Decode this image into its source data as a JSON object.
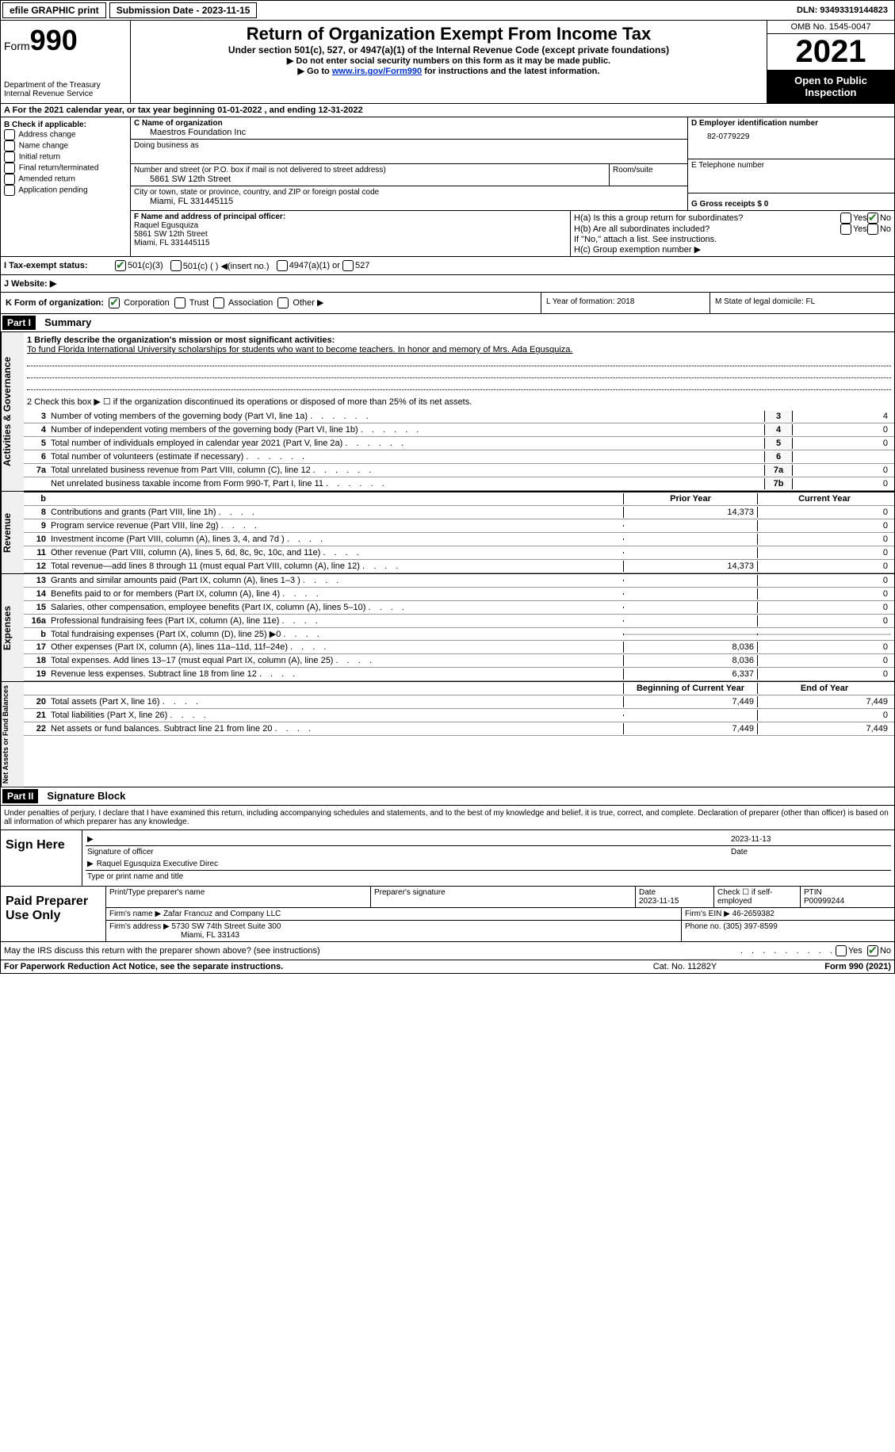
{
  "topbar": {
    "efile": "efile GRAPHIC print",
    "submission_label": "Submission Date - 2023-11-15",
    "dln": "DLN: 93493319144823"
  },
  "header": {
    "form_prefix": "Form",
    "form_num": "990",
    "dept": "Department of the Treasury",
    "irs": "Internal Revenue Service",
    "title": "Return of Organization Exempt From Income Tax",
    "sub": "Under section 501(c), 527, or 4947(a)(1) of the Internal Revenue Code (except private foundations)",
    "note1": "▶ Do not enter social security numbers on this form as it may be made public.",
    "note2_pre": "▶ Go to ",
    "note2_link": "www.irs.gov/Form990",
    "note2_post": " for instructions and the latest information.",
    "omb": "OMB No. 1545-0047",
    "year": "2021",
    "open": "Open to Public Inspection"
  },
  "row_a": "A  For the 2021 calendar year, or tax year beginning 01-01-2022    , and ending 12-31-2022",
  "col_b": {
    "label": "B Check if applicable:",
    "opts": [
      "Address change",
      "Name change",
      "Initial return",
      "Final return/terminated",
      "Amended return",
      "Application pending"
    ]
  },
  "col_c": {
    "name_label": "C Name of organization",
    "name": "Maestros Foundation Inc",
    "dba_label": "Doing business as",
    "addr_label": "Number and street (or P.O. box if mail is not delivered to street address)",
    "room_label": "Room/suite",
    "addr": "5861 SW 12th Street",
    "city_label": "City or town, state or province, country, and ZIP or foreign postal code",
    "city": "Miami, FL  331445115"
  },
  "col_de": {
    "d_label": "D Employer identification number",
    "d_val": "82-0779229",
    "e_label": "E Telephone number",
    "g_label": "G Gross receipts $ 0"
  },
  "col_f": {
    "label": "F  Name and address of principal officer:",
    "name": "Raquel Egusquiza",
    "addr1": "5861 SW 12th Street",
    "addr2": "Miami, FL  331445115"
  },
  "col_h": {
    "ha": "H(a)  Is this a group return for subordinates?",
    "hb": "H(b)  Are all subordinates included?",
    "hb_note": "If \"No,\" attach a list. See instructions.",
    "hc": "H(c)  Group exemption number ▶"
  },
  "row_i": {
    "label": "I   Tax-exempt status:",
    "opt1": "501(c)(3)",
    "opt2": "501(c) (  ) ◀(insert no.)",
    "opt3": "4947(a)(1) or",
    "opt4": "527"
  },
  "row_j": "J   Website: ▶",
  "row_k": {
    "label": "K Form of organization:",
    "opts": [
      "Corporation",
      "Trust",
      "Association",
      "Other ▶"
    ]
  },
  "row_l": "L Year of formation: 2018",
  "row_m": "M State of legal domicile: FL",
  "part1": {
    "header": "Part I",
    "title": "Summary",
    "vtab1": "Activities & Governance",
    "vtab2": "Revenue",
    "vtab3": "Expenses",
    "vtab4": "Net Assets or Fund Balances",
    "line1_label": "1   Briefly describe the organization's mission or most significant activities:",
    "mission": "To fund Florida International University scholarships for students who want to become teachers. In honor and memory of Mrs. Ada Egusquiza.",
    "line2": "2    Check this box ▶ ☐  if the organization discontinued its operations or disposed of more than 25% of its net assets.",
    "lines_gov": [
      {
        "n": "3",
        "t": "Number of voting members of the governing body (Part VI, line 1a)",
        "box": "3",
        "v": "4"
      },
      {
        "n": "4",
        "t": "Number of independent voting members of the governing body (Part VI, line 1b)",
        "box": "4",
        "v": "0"
      },
      {
        "n": "5",
        "t": "Total number of individuals employed in calendar year 2021 (Part V, line 2a)",
        "box": "5",
        "v": "0"
      },
      {
        "n": "6",
        "t": "Total number of volunteers (estimate if necessary)",
        "box": "6",
        "v": ""
      },
      {
        "n": "7a",
        "t": "Total unrelated business revenue from Part VIII, column (C), line 12",
        "box": "7a",
        "v": "0"
      },
      {
        "n": "",
        "t": "Net unrelated business taxable income from Form 990-T, Part I, line 11",
        "box": "7b",
        "v": "0"
      }
    ],
    "prior_header": "Prior Year",
    "curr_header": "Current Year",
    "lines_rev": [
      {
        "n": "8",
        "t": "Contributions and grants (Part VIII, line 1h)",
        "p": "14,373",
        "c": "0"
      },
      {
        "n": "9",
        "t": "Program service revenue (Part VIII, line 2g)",
        "p": "",
        "c": "0"
      },
      {
        "n": "10",
        "t": "Investment income (Part VIII, column (A), lines 3, 4, and 7d )",
        "p": "",
        "c": "0"
      },
      {
        "n": "11",
        "t": "Other revenue (Part VIII, column (A), lines 5, 6d, 8c, 9c, 10c, and 11e)",
        "p": "",
        "c": "0"
      },
      {
        "n": "12",
        "t": "Total revenue—add lines 8 through 11 (must equal Part VIII, column (A), line 12)",
        "p": "14,373",
        "c": "0"
      }
    ],
    "lines_exp": [
      {
        "n": "13",
        "t": "Grants and similar amounts paid (Part IX, column (A), lines 1–3 )",
        "p": "",
        "c": "0"
      },
      {
        "n": "14",
        "t": "Benefits paid to or for members (Part IX, column (A), line 4)",
        "p": "",
        "c": "0"
      },
      {
        "n": "15",
        "t": "Salaries, other compensation, employee benefits (Part IX, column (A), lines 5–10)",
        "p": "",
        "c": "0"
      },
      {
        "n": "16a",
        "t": "Professional fundraising fees (Part IX, column (A), line 11e)",
        "p": "",
        "c": "0"
      },
      {
        "n": "b",
        "t": "Total fundraising expenses (Part IX, column (D), line 25) ▶0",
        "p": "shaded",
        "c": "shaded"
      },
      {
        "n": "17",
        "t": "Other expenses (Part IX, column (A), lines 11a–11d, 11f–24e)",
        "p": "8,036",
        "c": "0"
      },
      {
        "n": "18",
        "t": "Total expenses. Add lines 13–17 (must equal Part IX, column (A), line 25)",
        "p": "8,036",
        "c": "0"
      },
      {
        "n": "19",
        "t": "Revenue less expenses. Subtract line 18 from line 12",
        "p": "6,337",
        "c": "0"
      }
    ],
    "bcy_header": "Beginning of Current Year",
    "eoy_header": "End of Year",
    "lines_net": [
      {
        "n": "20",
        "t": "Total assets (Part X, line 16)",
        "p": "7,449",
        "c": "7,449"
      },
      {
        "n": "21",
        "t": "Total liabilities (Part X, line 26)",
        "p": "",
        "c": "0"
      },
      {
        "n": "22",
        "t": "Net assets or fund balances. Subtract line 21 from line 20",
        "p": "7,449",
        "c": "7,449"
      }
    ]
  },
  "part2": {
    "header": "Part II",
    "title": "Signature Block",
    "decl": "Under penalties of perjury, I declare that I have examined this return, including accompanying schedules and statements, and to the best of my knowledge and belief, it is true, correct, and complete. Declaration of preparer (other than officer) is based on all information of which preparer has any knowledge.",
    "sign_here": "Sign Here",
    "sig_officer": "Signature of officer",
    "sig_date": "2023-11-13",
    "date_label": "Date",
    "officer_name": "Raquel Egusquiza  Executive Direc",
    "type_name": "Type or print name and title",
    "paid_prep": "Paid Preparer Use Only",
    "prep_name_label": "Print/Type preparer's name",
    "prep_sig_label": "Preparer's signature",
    "prep_date_label": "Date",
    "prep_date": "2023-11-15",
    "check_self": "Check ☐ if self-employed",
    "ptin_label": "PTIN",
    "ptin": "P00999244",
    "firm_name_label": "Firm's name    ▶",
    "firm_name": "Zafar Francuz and Company LLC",
    "firm_ein_label": "Firm's EIN ▶",
    "firm_ein": "46-2659382",
    "firm_addr_label": "Firm's address ▶",
    "firm_addr": "5730 SW 74th Street Suite 300",
    "firm_city": "Miami, FL  33143",
    "phone_label": "Phone no.",
    "phone": "(305) 397-8599",
    "may_irs": "May the IRS discuss this return with the preparer shown above? (see instructions)"
  },
  "footer": {
    "pra": "For Paperwork Reduction Act Notice, see the separate instructions.",
    "cat": "Cat. No. 11282Y",
    "form": "Form 990 (2021)"
  },
  "yesno": {
    "yes": "Yes",
    "no": "No"
  }
}
